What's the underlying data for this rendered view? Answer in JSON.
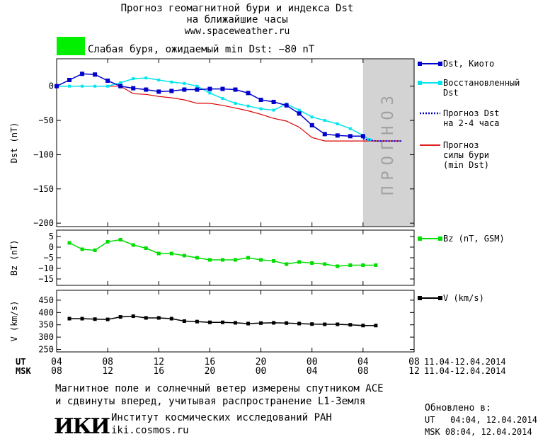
{
  "header": {
    "title_line1": "Прогноз геомагнитной бури и индекса Dst",
    "title_line2": "на ближайшие часы",
    "website": "www.spaceweather.ru",
    "status_color": "#00f000",
    "status_text": "Слабая буря, ожидаемый min Dst: −80 nT"
  },
  "colors": {
    "dst_kyoto": "#0000cc",
    "dst_restored": "#00e5ee",
    "dst_forecast": "#0000cc",
    "storm_strength": "#dd0000",
    "bz": "#00dd00",
    "v": "#000000",
    "forecast_band": "#d3d3d3"
  },
  "chart_data": [
    {
      "type": "line",
      "ylabel": "Dst (nT)",
      "ylim": [
        -205,
        40
      ],
      "yticks": [
        "0",
        "−50",
        "−100",
        "−150",
        "−200"
      ],
      "ytick_values": [
        0,
        -50,
        -100,
        -150,
        -200
      ],
      "x_range_hours": [
        0,
        28
      ],
      "forecast_band": {
        "from": 24,
        "to": 28,
        "label": "ПРОГНОЗ"
      },
      "series": [
        {
          "name": "Dst, Киото",
          "x": [
            0,
            1,
            2,
            3,
            4,
            5,
            6,
            7,
            8,
            9,
            10,
            11,
            12,
            13,
            14,
            15,
            16,
            17,
            18,
            19,
            20,
            21,
            22,
            23,
            24
          ],
          "y": [
            0,
            9,
            18,
            17,
            8,
            0,
            -3,
            -5,
            -8,
            -7,
            -5,
            -5,
            -4,
            -4,
            -5,
            -10,
            -20,
            -23,
            -28,
            -40,
            -57,
            -70,
            -72,
            -73,
            -73
          ]
        },
        {
          "name": "Восстановленный Dst",
          "x": [
            0,
            1,
            2,
            3,
            4,
            5,
            6,
            7,
            8,
            9,
            10,
            11,
            12,
            13,
            14,
            15,
            16,
            17,
            18,
            19,
            20,
            21,
            22,
            23,
            24,
            24.5
          ],
          "y": [
            0,
            0,
            0,
            0,
            0,
            5,
            11,
            12,
            9,
            6,
            4,
            0,
            -10,
            -18,
            -25,
            -29,
            -33,
            -35,
            -26,
            -35,
            -45,
            -50,
            -55,
            -62,
            -72,
            -78
          ]
        },
        {
          "name": "Прогноз Dst на 2-4 часа",
          "x": [
            24,
            25,
            26,
            27
          ],
          "y": [
            -77,
            -80,
            -80,
            -80
          ]
        },
        {
          "name": "Прогноз силы бури (min Dst)",
          "x": [
            0,
            1,
            2,
            3,
            4,
            5,
            6,
            7,
            8,
            9,
            10,
            11,
            12,
            13,
            14,
            15,
            16,
            17,
            18,
            19,
            20,
            21,
            22,
            23,
            24,
            25,
            26,
            27
          ],
          "y": [
            0,
            0,
            0,
            0,
            0,
            0,
            -11,
            -12,
            -15,
            -17,
            -20,
            -25,
            -25,
            -28,
            -32,
            -36,
            -41,
            -47,
            -51,
            -60,
            -75,
            -80,
            -80,
            -80,
            -80,
            -80,
            -80,
            -80
          ]
        }
      ],
      "legend": [
        {
          "line1": "Dst, Киото",
          "line2": ""
        },
        {
          "line1": "Восстановленный",
          "line2": "Dst"
        },
        {
          "line1": "Прогноз Dst",
          "line2": "на 2-4 часа"
        },
        {
          "line1": "Прогноз",
          "line2": "силы бури",
          "line3": "(min Dst)"
        }
      ]
    },
    {
      "type": "line",
      "ylabel": "Bz (nT)",
      "ylim": [
        -18,
        8
      ],
      "yticks": [
        "5",
        "0",
        "−5",
        "−10",
        "−15"
      ],
      "ytick_values": [
        5,
        0,
        -5,
        -10,
        -15
      ],
      "series": [
        {
          "name": "Bz (nT, GSM)",
          "x": [
            1,
            2,
            3,
            4,
            5,
            6,
            7,
            8,
            9,
            10,
            11,
            12,
            13,
            14,
            15,
            16,
            17,
            18,
            19,
            20,
            21,
            22,
            23,
            24,
            25
          ],
          "y": [
            2,
            -1,
            -1.5,
            2.5,
            3.5,
            1,
            -0.5,
            -3,
            -3,
            -4,
            -5,
            -6,
            -6,
            -6,
            -5,
            -6,
            -6.5,
            -8,
            -7,
            -7.5,
            -8,
            -9,
            -8.5,
            -8.5,
            -8.5
          ]
        }
      ],
      "legend": [
        {
          "line1": "Bz (nT, GSM)"
        }
      ]
    },
    {
      "type": "line",
      "ylabel": "V (km/s)",
      "ylim": [
        240,
        490
      ],
      "yticks": [
        "450",
        "400",
        "350",
        "300",
        "250"
      ],
      "ytick_values": [
        450,
        400,
        350,
        300,
        250
      ],
      "series": [
        {
          "name": "V (km/s)",
          "x": [
            1,
            2,
            3,
            4,
            5,
            6,
            7,
            8,
            9,
            10,
            11,
            12,
            13,
            14,
            15,
            16,
            17,
            18,
            19,
            20,
            21,
            22,
            23,
            24,
            25
          ],
          "y": [
            375,
            375,
            373,
            372,
            382,
            385,
            378,
            378,
            375,
            365,
            363,
            360,
            360,
            358,
            355,
            357,
            358,
            357,
            355,
            353,
            352,
            352,
            350,
            347,
            347
          ]
        }
      ],
      "legend": [
        {
          "line1": "V (km/s)"
        }
      ]
    }
  ],
  "time_axis": {
    "ut_label": "UT",
    "msk_label": "MSK",
    "ut_ticks": [
      "04",
      "08",
      "12",
      "16",
      "20",
      "00",
      "04",
      "08"
    ],
    "msk_ticks": [
      "08",
      "12",
      "16",
      "20",
      "00",
      "04",
      "08",
      "12"
    ],
    "tick_hours": [
      0,
      4,
      8,
      12,
      16,
      20,
      24,
      28
    ],
    "date_range_ut": "11.04-12.04.2014",
    "date_range_msk": "11.04-12.04.2014"
  },
  "footer": {
    "note_line1": "Магнитное поле и солнечный ветер измерены спутником ACE",
    "note_line2": "и сдвинуты вперед, учитывая распространение L1-Земля",
    "logo_text": "ИКИ",
    "institute_name": "Институт космических исследований РАН",
    "institute_site": "iki.cosmos.ru",
    "updated_label": "Обновлено в:",
    "updated_ut": "UT   04:04, 12.04.2014",
    "updated_msk": "MSK 08:04, 12.04.2014"
  }
}
